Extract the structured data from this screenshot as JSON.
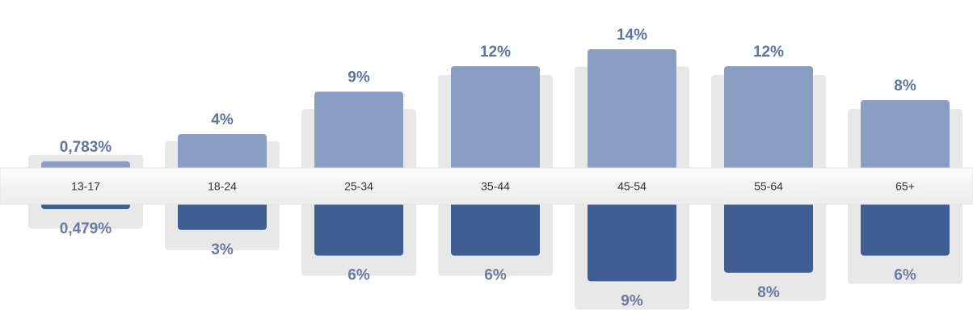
{
  "chart_data": {
    "type": "bar",
    "categories": [
      "13-17",
      "18-24",
      "25-34",
      "35-44",
      "45-54",
      "55-64",
      "65+"
    ],
    "series": [
      {
        "values": [
          0.783,
          4,
          9,
          12,
          14,
          12,
          8
        ],
        "labels": [
          "0,783%",
          "4%",
          "9%",
          "12%",
          "14%",
          "12%",
          "8%"
        ],
        "color": "#8a9dc2",
        "direction": "up"
      },
      {
        "values": [
          0.479,
          3,
          6,
          6,
          9,
          8,
          6
        ],
        "labels": [
          "0,479%",
          "3%",
          "6%",
          "6%",
          "9%",
          "8%",
          "6%"
        ],
        "color": "#3f5f94",
        "direction": "down"
      }
    ],
    "background_values": [
      0.6,
      2.2,
      6,
      10,
      11,
      10,
      6
    ],
    "background_color": "#e8e8e8",
    "band_color": "#f7f7f7",
    "grid": false,
    "legend": "none"
  }
}
